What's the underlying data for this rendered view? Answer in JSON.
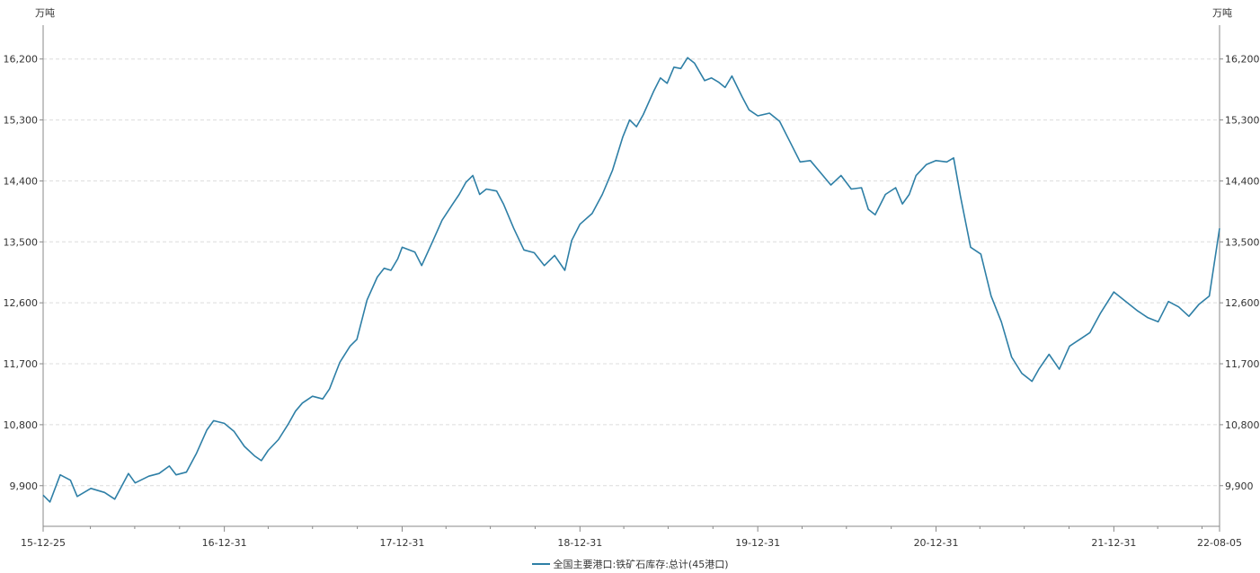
{
  "chart_data": {
    "type": "line",
    "unit_left": "万吨",
    "unit_right": "万吨",
    "y_ticks": [
      "9,900",
      "10,800",
      "11,700",
      "12,600",
      "13,500",
      "14,400",
      "15,300",
      "16,200"
    ],
    "ylim": [
      9300,
      16700
    ],
    "grid": true,
    "legend_position": "bottom-center",
    "x_tick_labels": [
      {
        "date": "2015-12-25",
        "label": "15-12-25"
      },
      {
        "date": "2016-12-31",
        "label": "16-12-31"
      },
      {
        "date": "2017-12-31",
        "label": "17-12-31"
      },
      {
        "date": "2018-12-31",
        "label": "18-12-31"
      },
      {
        "date": "2019-12-31",
        "label": "19-12-31"
      },
      {
        "date": "2020-12-31",
        "label": "20-12-31"
      },
      {
        "date": "2021-12-31",
        "label": "21-12-31"
      },
      {
        "date": "2022-08-05",
        "label": "22-08-05"
      }
    ],
    "xlim": [
      "2015-12-25",
      "2022-08-05"
    ],
    "series": [
      {
        "name": "全国主要港口:铁矿石库存:总计(45港口)",
        "color": "#2e7fa6",
        "points": [
          [
            "2015-12-25",
            9760
          ],
          [
            "2016-01-08",
            9660
          ],
          [
            "2016-01-29",
            10060
          ],
          [
            "2016-02-19",
            9980
          ],
          [
            "2016-03-04",
            9740
          ],
          [
            "2016-04-01",
            9860
          ],
          [
            "2016-04-29",
            9800
          ],
          [
            "2016-05-20",
            9700
          ],
          [
            "2016-06-17",
            10080
          ],
          [
            "2016-07-01",
            9940
          ],
          [
            "2016-07-29",
            10040
          ],
          [
            "2016-08-19",
            10080
          ],
          [
            "2016-09-09",
            10190
          ],
          [
            "2016-09-23",
            10060
          ],
          [
            "2016-10-14",
            10100
          ],
          [
            "2016-11-04",
            10380
          ],
          [
            "2016-11-25",
            10720
          ],
          [
            "2016-12-09",
            10860
          ],
          [
            "2016-12-31",
            10820
          ],
          [
            "2017-01-20",
            10700
          ],
          [
            "2017-02-10",
            10480
          ],
          [
            "2017-03-03",
            10340
          ],
          [
            "2017-03-17",
            10270
          ],
          [
            "2017-03-31",
            10420
          ],
          [
            "2017-04-21",
            10580
          ],
          [
            "2017-05-12",
            10820
          ],
          [
            "2017-05-26",
            11000
          ],
          [
            "2017-06-09",
            11120
          ],
          [
            "2017-06-30",
            11220
          ],
          [
            "2017-07-21",
            11180
          ],
          [
            "2017-08-04",
            11330
          ],
          [
            "2017-08-25",
            11720
          ],
          [
            "2017-09-15",
            11960
          ],
          [
            "2017-09-29",
            12060
          ],
          [
            "2017-10-20",
            12640
          ],
          [
            "2017-11-10",
            12980
          ],
          [
            "2017-11-24",
            13110
          ],
          [
            "2017-12-08",
            13080
          ],
          [
            "2017-12-22",
            13250
          ],
          [
            "2017-12-31",
            13420
          ],
          [
            "2018-01-26",
            13350
          ],
          [
            "2018-02-09",
            13150
          ],
          [
            "2018-03-02",
            13480
          ],
          [
            "2018-03-23",
            13820
          ],
          [
            "2018-04-13",
            14050
          ],
          [
            "2018-04-27",
            14200
          ],
          [
            "2018-05-11",
            14380
          ],
          [
            "2018-05-25",
            14480
          ],
          [
            "2018-06-08",
            14200
          ],
          [
            "2018-06-22",
            14280
          ],
          [
            "2018-07-13",
            14250
          ],
          [
            "2018-07-27",
            14060
          ],
          [
            "2018-08-17",
            13700
          ],
          [
            "2018-09-07",
            13380
          ],
          [
            "2018-09-28",
            13340
          ],
          [
            "2018-10-19",
            13150
          ],
          [
            "2018-11-09",
            13300
          ],
          [
            "2018-11-30",
            13080
          ],
          [
            "2018-12-14",
            13520
          ],
          [
            "2018-12-31",
            13760
          ],
          [
            "2019-01-25",
            13920
          ],
          [
            "2019-02-15",
            14200
          ],
          [
            "2019-03-08",
            14560
          ],
          [
            "2019-03-29",
            15050
          ],
          [
            "2019-04-12",
            15300
          ],
          [
            "2019-04-26",
            15200
          ],
          [
            "2019-05-10",
            15380
          ],
          [
            "2019-05-31",
            15720
          ],
          [
            "2019-06-14",
            15920
          ],
          [
            "2019-06-28",
            15840
          ],
          [
            "2019-07-12",
            16080
          ],
          [
            "2019-07-26",
            16060
          ],
          [
            "2019-08-09",
            16220
          ],
          [
            "2019-08-23",
            16140
          ],
          [
            "2019-09-13",
            15880
          ],
          [
            "2019-09-27",
            15920
          ],
          [
            "2019-10-11",
            15860
          ],
          [
            "2019-10-25",
            15780
          ],
          [
            "2019-11-08",
            15950
          ],
          [
            "2019-11-29",
            15640
          ],
          [
            "2019-12-13",
            15450
          ],
          [
            "2019-12-31",
            15360
          ],
          [
            "2020-01-24",
            15400
          ],
          [
            "2020-02-14",
            15280
          ],
          [
            "2020-03-06",
            14980
          ],
          [
            "2020-03-27",
            14680
          ],
          [
            "2020-04-17",
            14700
          ],
          [
            "2020-05-08",
            14520
          ],
          [
            "2020-05-29",
            14340
          ],
          [
            "2020-06-19",
            14480
          ],
          [
            "2020-07-10",
            14280
          ],
          [
            "2020-07-31",
            14300
          ],
          [
            "2020-08-14",
            13980
          ],
          [
            "2020-08-28",
            13900
          ],
          [
            "2020-09-18",
            14200
          ],
          [
            "2020-10-09",
            14300
          ],
          [
            "2020-10-23",
            14060
          ],
          [
            "2020-11-06",
            14200
          ],
          [
            "2020-11-20",
            14480
          ],
          [
            "2020-12-11",
            14640
          ],
          [
            "2020-12-31",
            14700
          ],
          [
            "2021-01-22",
            14680
          ],
          [
            "2021-02-05",
            14740
          ],
          [
            "2021-02-19",
            14180
          ],
          [
            "2021-03-12",
            13420
          ],
          [
            "2021-04-02",
            13320
          ],
          [
            "2021-04-23",
            12700
          ],
          [
            "2021-05-14",
            12320
          ],
          [
            "2021-06-04",
            11800
          ],
          [
            "2021-06-25",
            11560
          ],
          [
            "2021-07-16",
            11440
          ],
          [
            "2021-07-30",
            11620
          ],
          [
            "2021-08-20",
            11840
          ],
          [
            "2021-09-10",
            11620
          ],
          [
            "2021-10-01",
            11960
          ],
          [
            "2021-10-22",
            12060
          ],
          [
            "2021-11-12",
            12160
          ],
          [
            "2021-12-03",
            12440
          ],
          [
            "2021-12-24",
            12680
          ],
          [
            "2021-12-31",
            12760
          ],
          [
            "2022-01-28",
            12600
          ],
          [
            "2022-02-18",
            12480
          ],
          [
            "2022-03-11",
            12380
          ],
          [
            "2022-04-01",
            12320
          ],
          [
            "2022-04-22",
            12620
          ],
          [
            "2022-05-13",
            12540
          ],
          [
            "2022-06-03",
            12400
          ],
          [
            "2022-06-24",
            12580
          ],
          [
            "2022-07-15",
            12700
          ],
          [
            "2022-08-05",
            13700
          ]
        ]
      }
    ]
  }
}
